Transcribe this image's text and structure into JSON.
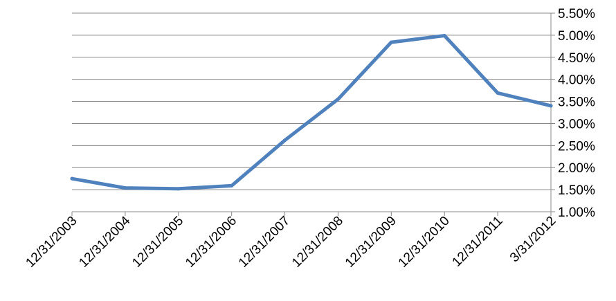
{
  "chart_data": {
    "type": "line",
    "title": "",
    "xlabel": "",
    "ylabel": "",
    "categories": [
      "12/31/2003",
      "12/31/2004",
      "12/31/2005",
      "12/31/2006",
      "12/31/2007",
      "12/31/2008",
      "12/31/2009",
      "12/31/2010",
      "12/31/2011",
      "3/31/2012"
    ],
    "y_tick_labels": [
      "1.00%",
      "1.50%",
      "2.00%",
      "2.50%",
      "3.00%",
      "3.50%",
      "4.00%",
      "4.50%",
      "5.00%",
      "5.50%"
    ],
    "y_ticks": [
      1.0,
      1.5,
      2.0,
      2.5,
      3.0,
      3.5,
      4.0,
      4.5,
      5.0,
      5.5
    ],
    "ylim": [
      1.0,
      5.5
    ],
    "y_axis_side": "right",
    "grid": true,
    "legend": "none",
    "series": [
      {
        "values": [
          1.75,
          1.54,
          1.52,
          1.59,
          2.62,
          3.55,
          4.84,
          4.99,
          3.69,
          3.4
        ],
        "color": "#4f81bd"
      }
    ]
  }
}
